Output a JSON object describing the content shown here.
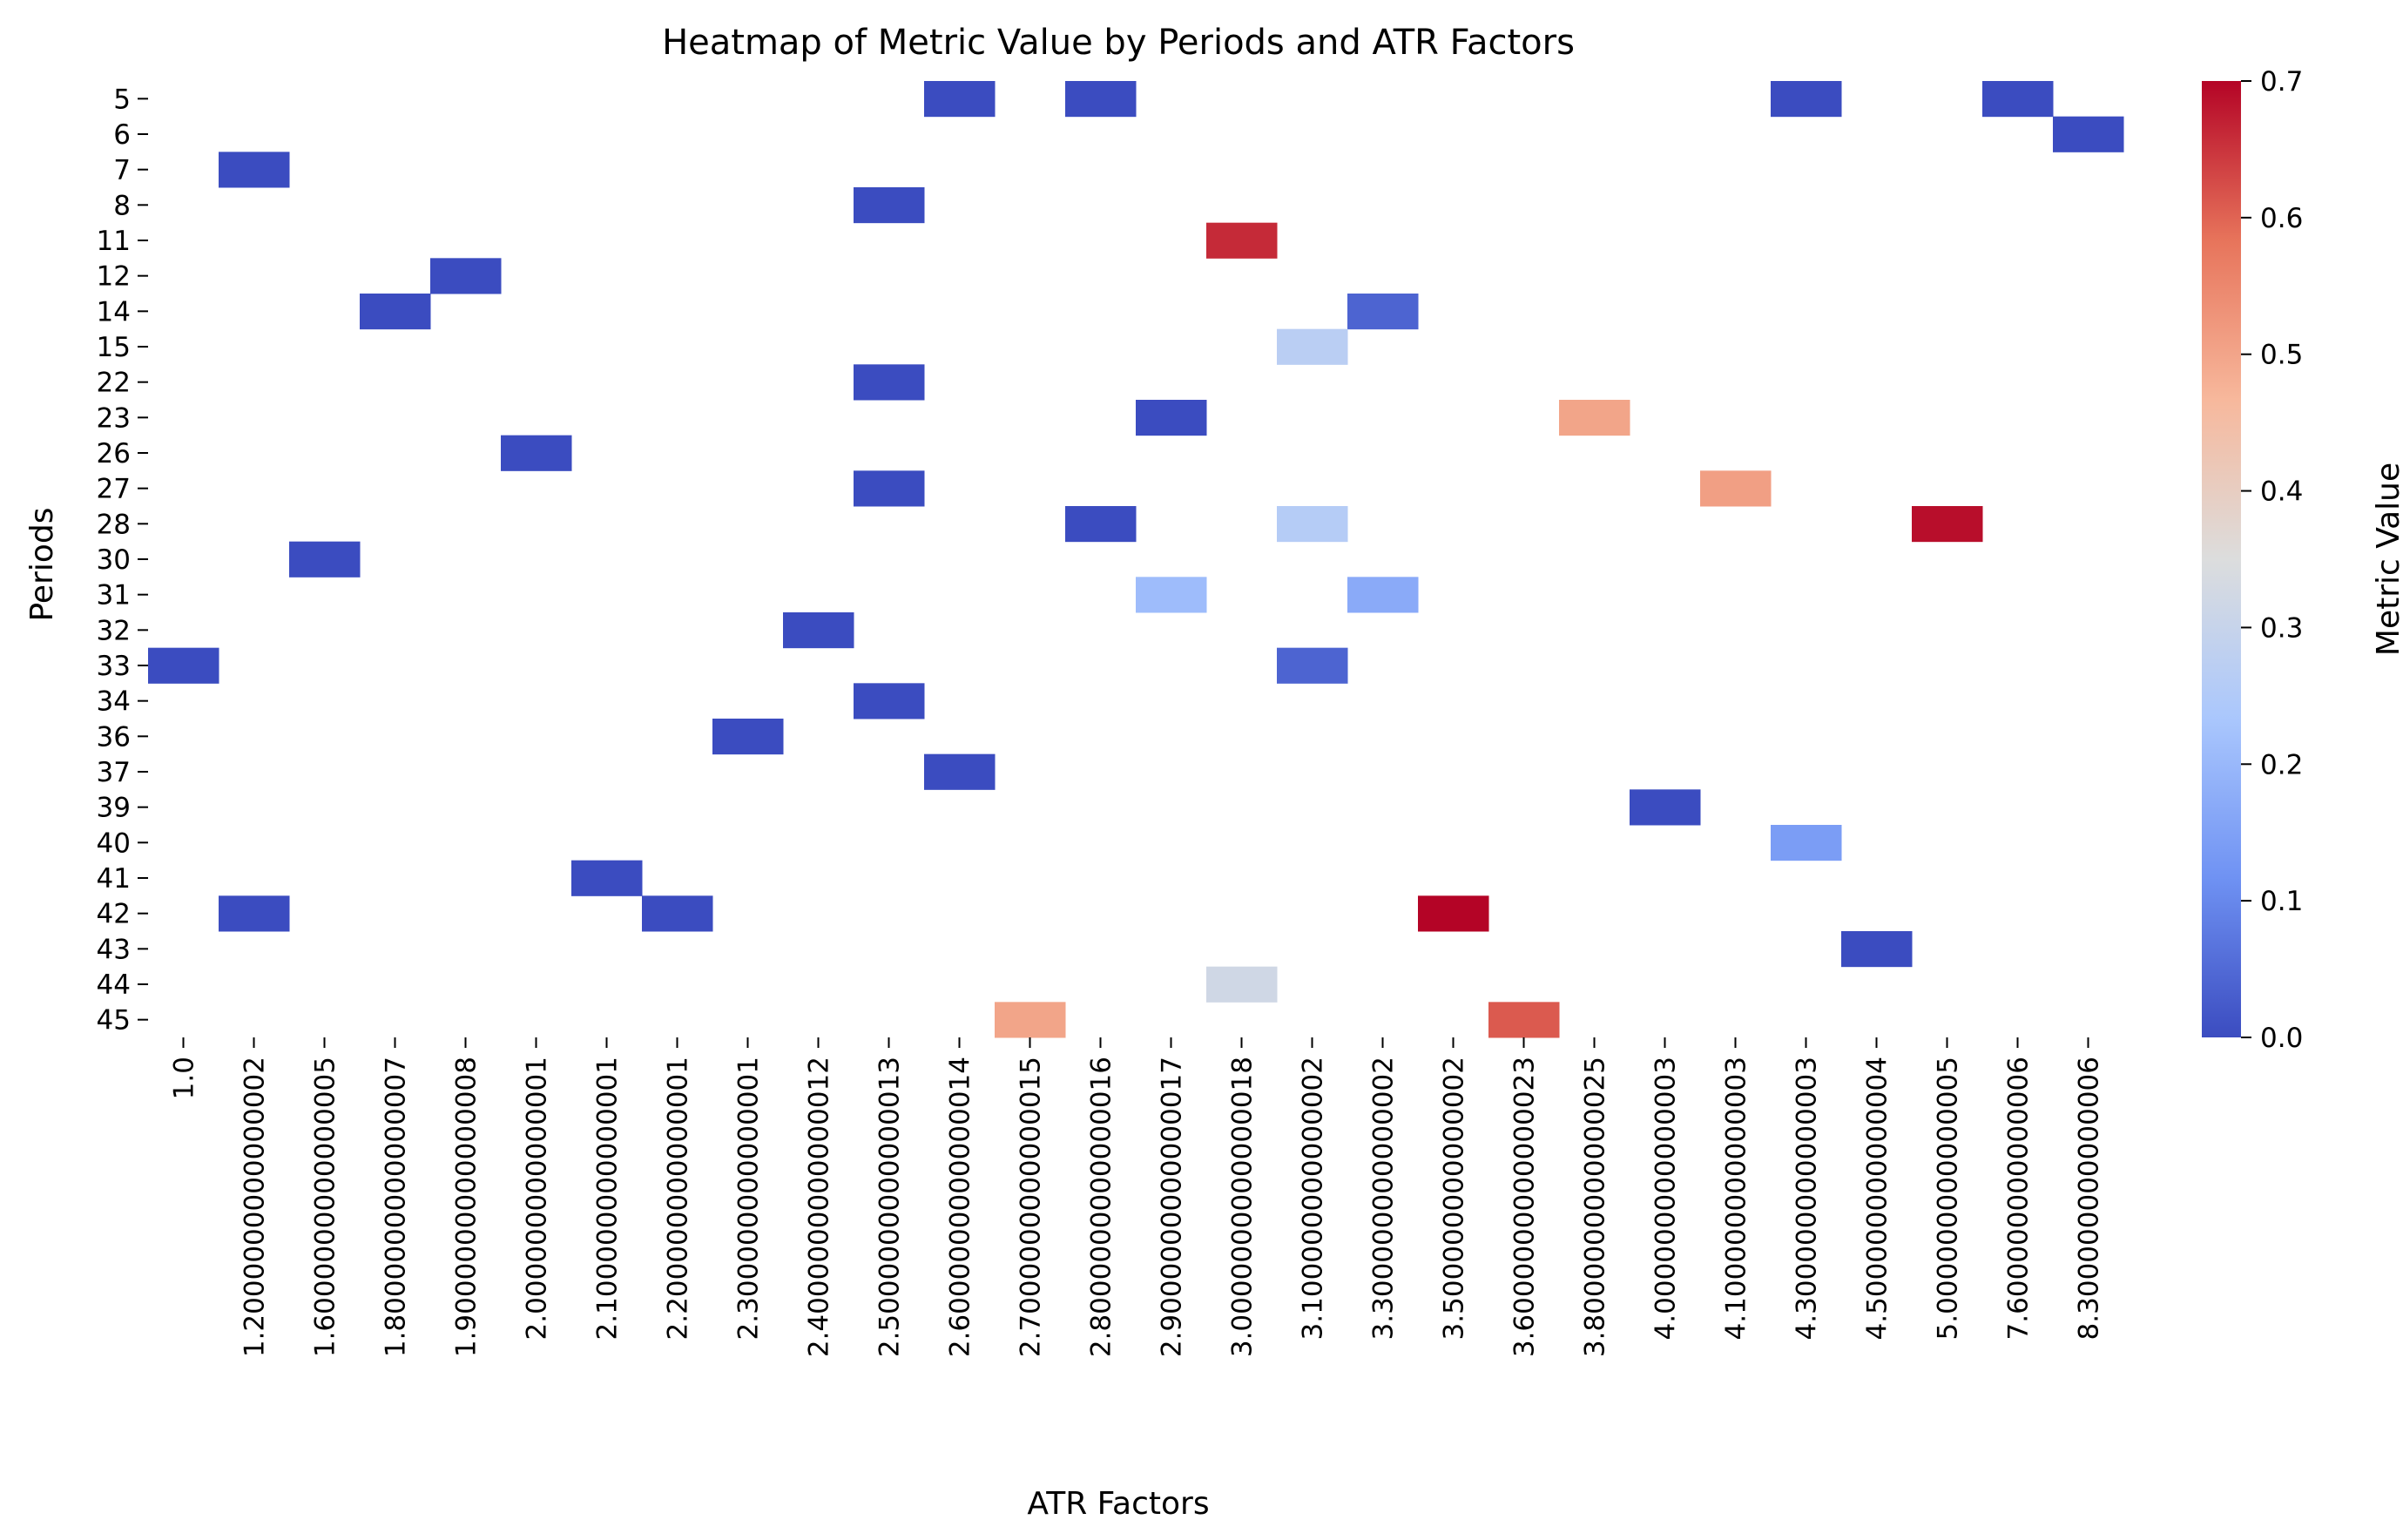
{
  "chart_data": {
    "type": "heatmap",
    "title": "Heatmap of Metric Value by Periods and ATR Factors",
    "xlabel": "ATR Factors",
    "ylabel": "Periods",
    "x_categories": [
      "1.0",
      "1.2000000000000002",
      "1.6000000000000005",
      "1.8000000000000007",
      "1.9000000000000008",
      "2.000000000000001",
      "2.100000000000001",
      "2.200000000000001",
      "2.300000000000001",
      "2.4000000000000012",
      "2.5000000000000013",
      "2.6000000000000014",
      "2.7000000000000015",
      "2.8000000000000016",
      "2.9000000000000017",
      "3.0000000000000018",
      "3.100000000000002",
      "3.300000000000002",
      "3.500000000000002",
      "3.6000000000000023",
      "3.8000000000000025",
      "4.000000000000003",
      "4.100000000000003",
      "4.300000000000003",
      "4.500000000000004",
      "5.000000000000005",
      "7.600000000000006",
      "8.300000000000006"
    ],
    "y_categories": [
      "5",
      "6",
      "7",
      "8",
      "11",
      "12",
      "14",
      "15",
      "22",
      "23",
      "26",
      "27",
      "28",
      "30",
      "31",
      "32",
      "33",
      "34",
      "36",
      "37",
      "39",
      "40",
      "41",
      "42",
      "43",
      "44",
      "45"
    ],
    "cells": [
      {
        "period": "5",
        "atr": "2.6000000000000014",
        "value": 0.0
      },
      {
        "period": "5",
        "atr": "2.8000000000000016",
        "value": 0.0
      },
      {
        "period": "5",
        "atr": "4.300000000000003",
        "value": 0.0
      },
      {
        "period": "5",
        "atr": "7.600000000000006",
        "value": 0.0
      },
      {
        "period": "6",
        "atr": "8.300000000000006",
        "value": 0.0
      },
      {
        "period": "7",
        "atr": "1.2000000000000002",
        "value": 0.0
      },
      {
        "period": "8",
        "atr": "2.5000000000000013",
        "value": 0.0
      },
      {
        "period": "11",
        "atr": "3.0000000000000018",
        "value": 0.66
      },
      {
        "period": "12",
        "atr": "1.9000000000000008",
        "value": 0.0
      },
      {
        "period": "14",
        "atr": "1.8000000000000007",
        "value": 0.0
      },
      {
        "period": "14",
        "atr": "3.300000000000002",
        "value": 0.04
      },
      {
        "period": "15",
        "atr": "3.100000000000002",
        "value": 0.27
      },
      {
        "period": "22",
        "atr": "2.5000000000000013",
        "value": 0.0
      },
      {
        "period": "23",
        "atr": "2.9000000000000017",
        "value": 0.0
      },
      {
        "period": "23",
        "atr": "3.8000000000000025",
        "value": 0.5
      },
      {
        "period": "26",
        "atr": "2.000000000000001",
        "value": 0.0
      },
      {
        "period": "27",
        "atr": "2.5000000000000013",
        "value": 0.0
      },
      {
        "period": "27",
        "atr": "4.100000000000003",
        "value": 0.51
      },
      {
        "period": "28",
        "atr": "2.8000000000000016",
        "value": 0.0
      },
      {
        "period": "28",
        "atr": "3.100000000000002",
        "value": 0.26
      },
      {
        "period": "28",
        "atr": "5.000000000000005",
        "value": 0.69
      },
      {
        "period": "30",
        "atr": "1.6000000000000005",
        "value": 0.0
      },
      {
        "period": "31",
        "atr": "2.9000000000000017",
        "value": 0.21
      },
      {
        "period": "31",
        "atr": "3.300000000000002",
        "value": 0.17
      },
      {
        "period": "32",
        "atr": "2.4000000000000012",
        "value": 0.0
      },
      {
        "period": "33",
        "atr": "1.0",
        "value": 0.0
      },
      {
        "period": "33",
        "atr": "3.100000000000002",
        "value": 0.04
      },
      {
        "period": "34",
        "atr": "2.5000000000000013",
        "value": 0.0
      },
      {
        "period": "36",
        "atr": "2.300000000000001",
        "value": 0.0
      },
      {
        "period": "37",
        "atr": "2.6000000000000014",
        "value": 0.0
      },
      {
        "period": "39",
        "atr": "4.000000000000003",
        "value": 0.0
      },
      {
        "period": "40",
        "atr": "4.300000000000003",
        "value": 0.14
      },
      {
        "period": "41",
        "atr": "2.100000000000001",
        "value": 0.0
      },
      {
        "period": "42",
        "atr": "1.2000000000000002",
        "value": 0.0
      },
      {
        "period": "42",
        "atr": "2.200000000000001",
        "value": 0.0
      },
      {
        "period": "42",
        "atr": "3.500000000000002",
        "value": 0.7
      },
      {
        "period": "43",
        "atr": "4.500000000000004",
        "value": 0.0
      },
      {
        "period": "44",
        "atr": "3.0000000000000018",
        "value": 0.32
      },
      {
        "period": "45",
        "atr": "2.7000000000000015",
        "value": 0.5
      },
      {
        "period": "45",
        "atr": "3.6000000000000023",
        "value": 0.61
      }
    ],
    "colorbar": {
      "label": "Metric Value",
      "min": 0.0,
      "max": 0.7,
      "ticks": [
        "0.0",
        "0.1",
        "0.2",
        "0.3",
        "0.4",
        "0.5",
        "0.6",
        "0.7"
      ],
      "colormap": "coolwarm",
      "color_stops": [
        "#3b4cc0",
        "#6f92f3",
        "#aac7fd",
        "#dcdddd",
        "#f7b89c",
        "#e7745b",
        "#b40426"
      ]
    },
    "grid": false,
    "legend": "colorbar-right"
  }
}
